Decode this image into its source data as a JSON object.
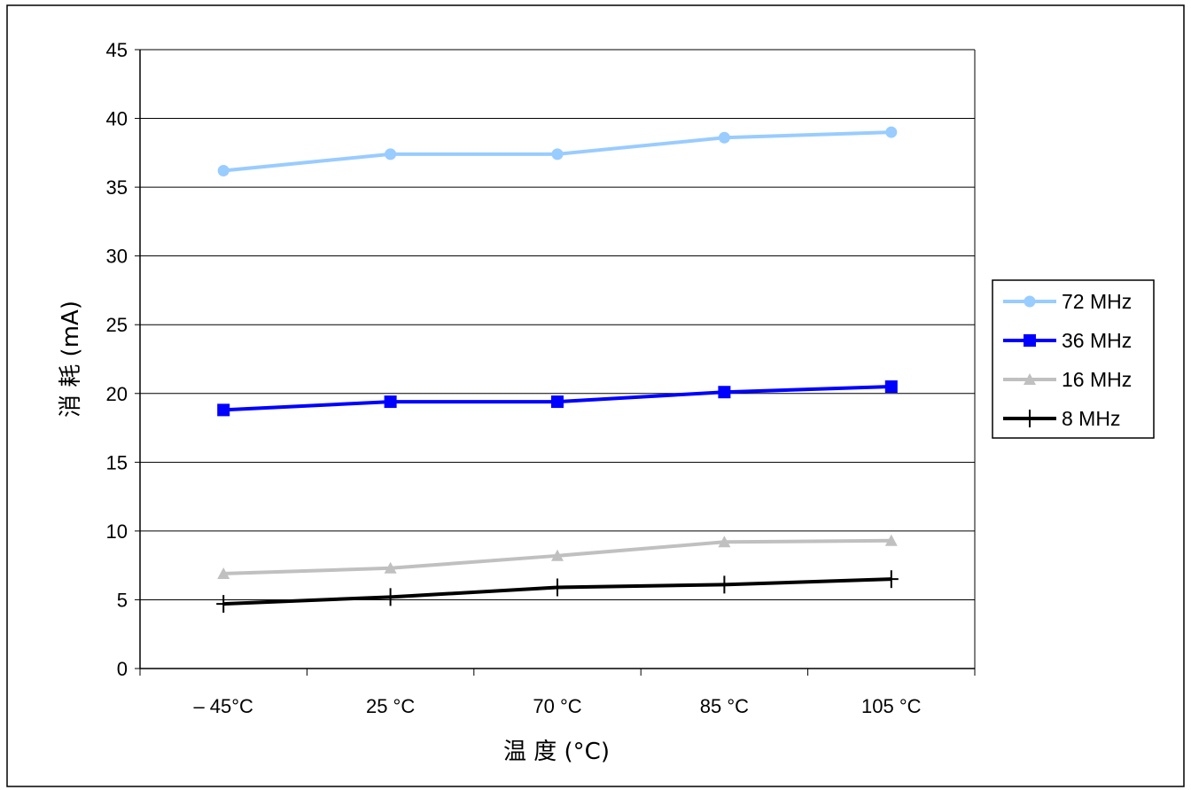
{
  "chart_data": {
    "type": "line",
    "title": "",
    "xlabel": "温 度 (°C)",
    "ylabel": "消 耗 (mA)",
    "categories": [
      "– 45°C",
      "25 °C",
      "70 °C",
      "85 °C",
      "105 °C"
    ],
    "ylim": [
      0,
      45
    ],
    "yticks": [
      0,
      5,
      10,
      15,
      20,
      25,
      30,
      35,
      40,
      45
    ],
    "grid": true,
    "legend_position": "right",
    "series": [
      {
        "name": "72 MHz",
        "color": "#99ccff",
        "marker": "circle",
        "values": [
          36.2,
          37.4,
          37.4,
          38.6,
          39.0
        ]
      },
      {
        "name": "36 MHz",
        "color": "#0000ff",
        "marker": "square",
        "values": [
          18.8,
          19.4,
          19.4,
          20.1,
          20.5
        ]
      },
      {
        "name": "16 MHz",
        "color": "#c0c0c0",
        "marker": "triangle",
        "values": [
          6.9,
          7.3,
          8.2,
          9.2,
          9.3
        ]
      },
      {
        "name": "8 MHz",
        "color": "#000000",
        "marker": "plus",
        "values": [
          4.7,
          5.2,
          5.9,
          6.1,
          6.5
        ]
      }
    ]
  }
}
